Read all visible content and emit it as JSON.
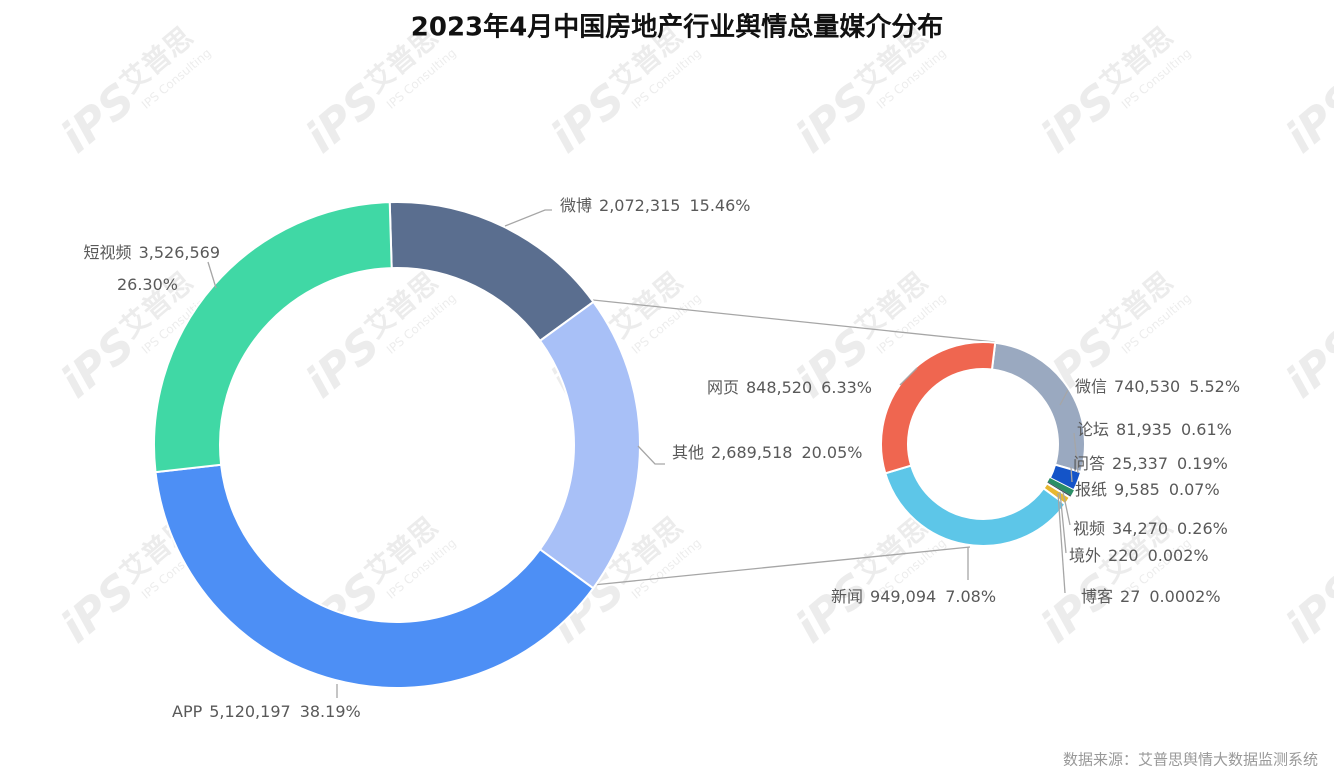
{
  "chart_data": {
    "type": "pie-of-pie",
    "title": "2023年4月中国房地产行业舆情总量媒介分布",
    "source": "数据来源：艾普思舆情大数据监测系统",
    "watermark": {
      "logo": "iPS",
      "brand": "艾普思",
      "brand_en": "IPS Consulting"
    },
    "categories": [
      "微博",
      "其他",
      "APP",
      "短视频"
    ],
    "values": [
      2072315,
      2689518,
      5120197,
      3526569
    ],
    "value_labels": [
      "2,072,315",
      "2,689,518",
      "5,120,197",
      "3,526,569"
    ],
    "percents": [
      15.46,
      20.05,
      38.19,
      26.3
    ],
    "percent_labels": [
      "15.46%",
      "20.05%",
      "38.19%",
      "26.30%"
    ],
    "colors": [
      "#5a6e8f",
      "#a8c0f7",
      "#4d8ff5",
      "#40d8a5"
    ],
    "breakdown": {
      "categories": [
        "微信",
        "论坛",
        "问答",
        "报纸",
        "视频",
        "境外",
        "博客",
        "新闻",
        "网页"
      ],
      "values": [
        740530,
        81935,
        25337,
        9585,
        34270,
        220,
        27,
        949094,
        848520
      ],
      "value_labels": [
        "740,530",
        "81,935",
        "25,337",
        "9,585",
        "34,270",
        "220",
        "27",
        "949,094",
        "848,520"
      ],
      "percents": [
        5.52,
        0.61,
        0.19,
        0.07,
        0.26,
        0.002,
        0.0002,
        7.08,
        6.33
      ],
      "percent_labels": [
        "5.52%",
        "0.61%",
        "0.19%",
        "0.07%",
        "0.26%",
        "0.002%",
        "0.0002%",
        "7.08%",
        "6.33%"
      ],
      "colors": [
        "#9aa9c0",
        "#1454c8",
        "#2a8f66",
        "#3d4a5a",
        "#e8b830",
        "#7a5230",
        "#c04040",
        "#5dc6e8",
        "#ef6650"
      ]
    }
  }
}
